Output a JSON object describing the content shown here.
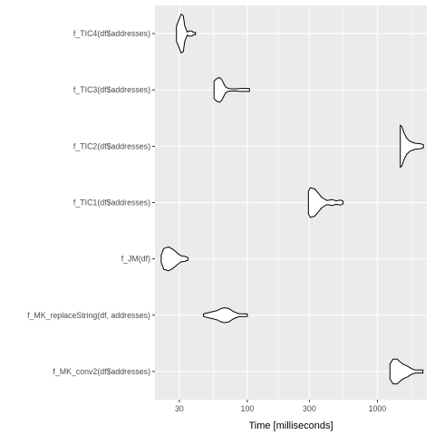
{
  "chart_data": {
    "type": "violin",
    "title": "",
    "xlabel": "Time [milliseconds]",
    "ylabel": "",
    "x_scale": "log10",
    "xlim": [
      19.5,
      2400
    ],
    "x_ticks": [
      30,
      100,
      300,
      1000
    ],
    "x_tick_labels": [
      "30",
      "100",
      "300",
      "1000"
    ],
    "grid": true,
    "legend": "none",
    "colors": {
      "panel": "#ebebeb",
      "grid": "#ffffff",
      "violin_fill": "#ffffff",
      "violin_stroke": "#000000",
      "text": "#4d4d4d"
    },
    "categories": [
      "f_TIC4(df$addresses)",
      "f_TIC3(df$addresses)",
      "f_TIC2(df$addresses)",
      "f_TIC1(df$addresses)",
      "f_JM(df)",
      "f_MK_replaceString(df, addresses)",
      "f_MK_conv2(df$addresses)"
    ],
    "series": [
      {
        "category": "f_TIC4(df$addresses)",
        "density": [
          [
            28.5,
            0.3
          ],
          [
            29.5,
            0.5
          ],
          [
            31,
            0.78
          ],
          [
            32.2,
            0.72
          ],
          [
            33,
            0.32
          ],
          [
            33.7,
            0.2
          ],
          [
            34.5,
            0.06
          ],
          [
            35.5,
            0.1
          ],
          [
            37.5,
            0.1
          ],
          [
            38.5,
            0.05
          ],
          [
            40,
            0.05
          ],
          [
            40,
            0.0
          ]
        ]
      },
      {
        "category": "f_TIC3(df$addresses)",
        "density": [
          [
            55.5,
            0.35
          ],
          [
            58,
            0.45
          ],
          [
            61,
            0.5
          ],
          [
            63.5,
            0.42
          ],
          [
            66,
            0.25
          ],
          [
            68,
            0.12
          ],
          [
            72,
            0.05
          ],
          [
            80,
            0.04
          ],
          [
            88,
            0.06
          ],
          [
            104,
            0.06
          ],
          [
            104,
            0.0
          ]
        ]
      },
      {
        "category": "f_TIC2(df$addresses)",
        "density": [
          [
            1500,
            0.85
          ],
          [
            1540,
            0.8
          ],
          [
            1600,
            0.55
          ],
          [
            1680,
            0.32
          ],
          [
            1780,
            0.2
          ],
          [
            1950,
            0.12
          ],
          [
            2140,
            0.1
          ],
          [
            2260,
            0.06
          ],
          [
            2260,
            0.0
          ]
        ]
      },
      {
        "category": "f_TIC1(df$addresses)",
        "density": [
          [
            295,
            0.45
          ],
          [
            305,
            0.6
          ],
          [
            330,
            0.55
          ],
          [
            355,
            0.35
          ],
          [
            375,
            0.2
          ],
          [
            410,
            0.08
          ],
          [
            450,
            0.12
          ],
          [
            480,
            0.07
          ],
          [
            520,
            0.1
          ],
          [
            545,
            0.05
          ],
          [
            545,
            0.0
          ]
        ]
      },
      {
        "category": "f_JM(df)",
        "density": [
          [
            21.8,
            0.15
          ],
          [
            22.8,
            0.42
          ],
          [
            24.8,
            0.48
          ],
          [
            26.5,
            0.4
          ],
          [
            28,
            0.3
          ],
          [
            29.5,
            0.2
          ],
          [
            31,
            0.12
          ],
          [
            33,
            0.1
          ],
          [
            35,
            0.05
          ],
          [
            35,
            0.0
          ]
        ]
      },
      {
        "category": "f_MK_replaceString(df, addresses)",
        "density": [
          [
            46,
            0.05
          ],
          [
            52,
            0.12
          ],
          [
            58,
            0.18
          ],
          [
            63,
            0.27
          ],
          [
            67,
            0.3
          ],
          [
            72,
            0.27
          ],
          [
            78,
            0.15
          ],
          [
            86,
            0.06
          ],
          [
            100,
            0.05
          ],
          [
            100,
            0.0
          ]
        ]
      },
      {
        "category": "f_MK_conv2(df$addresses)",
        "density": [
          [
            1250,
            0.3
          ],
          [
            1320,
            0.5
          ],
          [
            1420,
            0.5
          ],
          [
            1500,
            0.38
          ],
          [
            1600,
            0.28
          ],
          [
            1700,
            0.22
          ],
          [
            1850,
            0.1
          ],
          [
            1960,
            0.06
          ],
          [
            2240,
            0.06
          ],
          [
            2240,
            0.0
          ]
        ]
      }
    ]
  }
}
